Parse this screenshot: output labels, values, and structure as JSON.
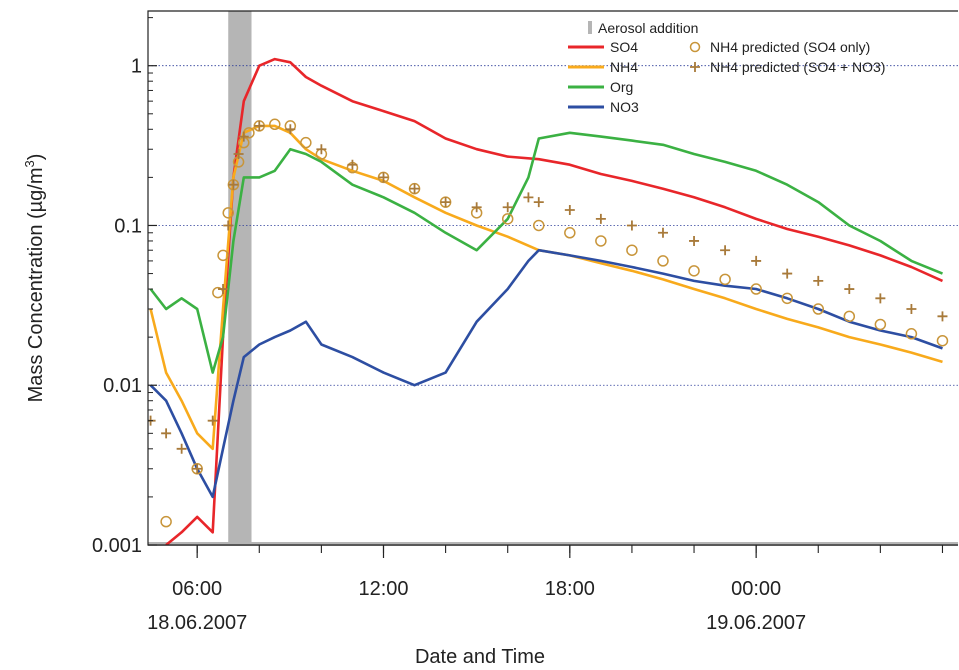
{
  "chart_data": {
    "type": "line",
    "xlabel": "Date and Time",
    "ylabel": "Mass Concentration (µg/m³)",
    "ylabel_parts": {
      "main": "Mass Concentration (µg/m",
      "sup": "3",
      "close": ")"
    },
    "yscale": "log",
    "xlim": [
      "2007-06-18 04:25",
      "2007-06-19 06:30"
    ],
    "ylim": [
      0.001,
      2.2
    ],
    "y_ticks": [
      {
        "value": 1,
        "label": "1"
      },
      {
        "value": 0.1,
        "label": "0.1"
      },
      {
        "value": 0.01,
        "label": "0.01"
      },
      {
        "value": 0.001,
        "label": "0.001"
      }
    ],
    "x_ticks": [
      {
        "time": "2007-06-18 06:00",
        "label": "06:00",
        "date_label": "18.06.2007"
      },
      {
        "time": "2007-06-18 12:00",
        "label": "12:00",
        "date_label": ""
      },
      {
        "time": "2007-06-18 18:00",
        "label": "18:00",
        "date_label": ""
      },
      {
        "time": "2007-06-19 00:00",
        "label": "00:00",
        "date_label": "19.06.2007"
      }
    ],
    "grid": "horizontal dotted at decades",
    "legend_position": "top-right",
    "aerosol_addition": {
      "name": "Aerosol addition",
      "start": "2007-06-18 07:00",
      "end": "2007-06-18 07:45",
      "color": "#b5b5b5"
    },
    "series": [
      {
        "name": "SO4",
        "style": "line",
        "color": "#e8262a",
        "x": [
          "2007-06-18 05:00",
          "2007-06-18 05:30",
          "2007-06-18 06:00",
          "2007-06-18 06:30",
          "2007-06-18 06:50",
          "2007-06-18 07:10",
          "2007-06-18 07:30",
          "2007-06-18 08:00",
          "2007-06-18 08:30",
          "2007-06-18 09:00",
          "2007-06-18 09:30",
          "2007-06-18 10:00",
          "2007-06-18 11:00",
          "2007-06-18 12:00",
          "2007-06-18 13:00",
          "2007-06-18 14:00",
          "2007-06-18 15:00",
          "2007-06-18 16:00",
          "2007-06-18 17:00",
          "2007-06-18 18:00",
          "2007-06-18 19:00",
          "2007-06-18 20:00",
          "2007-06-18 21:00",
          "2007-06-18 22:00",
          "2007-06-18 23:00",
          "2007-06-19 00:00",
          "2007-06-19 01:00",
          "2007-06-19 02:00",
          "2007-06-19 03:00",
          "2007-06-19 04:00",
          "2007-06-19 05:00",
          "2007-06-19 06:00"
        ],
        "y": [
          0.001,
          0.0012,
          0.0015,
          0.0012,
          0.02,
          0.2,
          0.6,
          1.0,
          1.1,
          1.05,
          0.85,
          0.75,
          0.6,
          0.52,
          0.45,
          0.35,
          0.3,
          0.27,
          0.26,
          0.24,
          0.21,
          0.19,
          0.17,
          0.15,
          0.13,
          0.11,
          0.095,
          0.085,
          0.075,
          0.065,
          0.055,
          0.045
        ]
      },
      {
        "name": "NH4",
        "style": "line",
        "color": "#f8aa1c",
        "x": [
          "2007-06-18 04:30",
          "2007-06-18 05:00",
          "2007-06-18 05:30",
          "2007-06-18 06:00",
          "2007-06-18 06:30",
          "2007-06-18 06:50",
          "2007-06-18 07:10",
          "2007-06-18 07:30",
          "2007-06-18 08:00",
          "2007-06-18 08:30",
          "2007-06-18 09:00",
          "2007-06-18 09:30",
          "2007-06-18 10:00",
          "2007-06-18 11:00",
          "2007-06-18 12:00",
          "2007-06-18 13:00",
          "2007-06-18 14:00",
          "2007-06-18 15:00",
          "2007-06-18 16:00",
          "2007-06-18 17:00",
          "2007-06-18 18:00",
          "2007-06-18 19:00",
          "2007-06-18 20:00",
          "2007-06-18 21:00",
          "2007-06-18 22:00",
          "2007-06-18 23:00",
          "2007-06-19 00:00",
          "2007-06-19 01:00",
          "2007-06-19 02:00",
          "2007-06-19 03:00",
          "2007-06-19 04:00",
          "2007-06-19 05:00",
          "2007-06-19 06:00"
        ],
        "y": [
          0.03,
          0.012,
          0.008,
          0.005,
          0.004,
          0.03,
          0.2,
          0.38,
          0.42,
          0.42,
          0.38,
          0.3,
          0.26,
          0.22,
          0.19,
          0.15,
          0.12,
          0.1,
          0.085,
          0.07,
          0.065,
          0.058,
          0.052,
          0.046,
          0.04,
          0.035,
          0.03,
          0.026,
          0.023,
          0.02,
          0.018,
          0.016,
          0.014
        ]
      },
      {
        "name": "Org",
        "style": "line",
        "color": "#3bb143",
        "x": [
          "2007-06-18 04:30",
          "2007-06-18 05:00",
          "2007-06-18 05:30",
          "2007-06-18 06:00",
          "2007-06-18 06:30",
          "2007-06-18 06:50",
          "2007-06-18 07:10",
          "2007-06-18 07:30",
          "2007-06-18 08:00",
          "2007-06-18 08:30",
          "2007-06-18 09:00",
          "2007-06-18 09:30",
          "2007-06-18 10:00",
          "2007-06-18 11:00",
          "2007-06-18 12:00",
          "2007-06-18 13:00",
          "2007-06-18 14:00",
          "2007-06-18 15:00",
          "2007-06-18 16:00",
          "2007-06-18 16:40",
          "2007-06-18 17:00",
          "2007-06-18 18:00",
          "2007-06-18 19:00",
          "2007-06-18 20:00",
          "2007-06-18 21:00",
          "2007-06-18 22:00",
          "2007-06-18 23:00",
          "2007-06-19 00:00",
          "2007-06-19 01:00",
          "2007-06-19 02:00",
          "2007-06-19 03:00",
          "2007-06-19 04:00",
          "2007-06-19 05:00",
          "2007-06-19 06:00"
        ],
        "y": [
          0.04,
          0.03,
          0.035,
          0.03,
          0.012,
          0.02,
          0.08,
          0.2,
          0.2,
          0.22,
          0.3,
          0.28,
          0.25,
          0.18,
          0.15,
          0.12,
          0.09,
          0.07,
          0.11,
          0.2,
          0.35,
          0.38,
          0.36,
          0.34,
          0.32,
          0.28,
          0.25,
          0.22,
          0.18,
          0.14,
          0.1,
          0.08,
          0.06,
          0.05
        ]
      },
      {
        "name": "NO3",
        "style": "line",
        "color": "#2d4ea2",
        "x": [
          "2007-06-18 04:30",
          "2007-06-18 05:00",
          "2007-06-18 05:30",
          "2007-06-18 06:00",
          "2007-06-18 06:30",
          "2007-06-18 06:50",
          "2007-06-18 07:10",
          "2007-06-18 07:30",
          "2007-06-18 08:00",
          "2007-06-18 08:30",
          "2007-06-18 09:00",
          "2007-06-18 09:30",
          "2007-06-18 10:00",
          "2007-06-18 11:00",
          "2007-06-18 12:00",
          "2007-06-18 13:00",
          "2007-06-18 14:00",
          "2007-06-18 15:00",
          "2007-06-18 16:00",
          "2007-06-18 16:40",
          "2007-06-18 17:00",
          "2007-06-18 18:00",
          "2007-06-18 19:00",
          "2007-06-18 20:00",
          "2007-06-18 21:00",
          "2007-06-18 22:00",
          "2007-06-18 23:00",
          "2007-06-19 00:00",
          "2007-06-19 01:00",
          "2007-06-19 02:00",
          "2007-06-19 03:00",
          "2007-06-19 04:00",
          "2007-06-19 05:00",
          "2007-06-19 06:00"
        ],
        "y": [
          0.01,
          0.008,
          0.005,
          0.003,
          0.002,
          0.004,
          0.008,
          0.015,
          0.018,
          0.02,
          0.022,
          0.025,
          0.018,
          0.015,
          0.012,
          0.01,
          0.012,
          0.025,
          0.04,
          0.06,
          0.07,
          0.065,
          0.06,
          0.055,
          0.05,
          0.045,
          0.042,
          0.04,
          0.035,
          0.03,
          0.025,
          0.022,
          0.02,
          0.017
        ]
      },
      {
        "name": "NH4 predicted (SO4 only)",
        "style": "circle",
        "color": "#c8953a",
        "x": [
          "2007-06-18 05:00",
          "2007-06-18 06:00",
          "2007-06-18 06:40",
          "2007-06-18 06:50",
          "2007-06-18 07:00",
          "2007-06-18 07:10",
          "2007-06-18 07:20",
          "2007-06-18 07:30",
          "2007-06-18 07:40",
          "2007-06-18 08:00",
          "2007-06-18 08:30",
          "2007-06-18 09:00",
          "2007-06-18 09:30",
          "2007-06-18 10:00",
          "2007-06-18 11:00",
          "2007-06-18 12:00",
          "2007-06-18 13:00",
          "2007-06-18 14:00",
          "2007-06-18 15:00",
          "2007-06-18 16:00",
          "2007-06-18 17:00",
          "2007-06-18 18:00",
          "2007-06-18 19:00",
          "2007-06-18 20:00",
          "2007-06-18 21:00",
          "2007-06-18 22:00",
          "2007-06-18 23:00",
          "2007-06-19 00:00",
          "2007-06-19 01:00",
          "2007-06-19 02:00",
          "2007-06-19 03:00",
          "2007-06-19 04:00",
          "2007-06-19 05:00",
          "2007-06-19 06:00"
        ],
        "y": [
          0.0014,
          0.003,
          0.038,
          0.065,
          0.12,
          0.18,
          0.25,
          0.33,
          0.38,
          0.42,
          0.43,
          0.42,
          0.33,
          0.28,
          0.23,
          0.2,
          0.17,
          0.14,
          0.12,
          0.11,
          0.1,
          0.09,
          0.08,
          0.07,
          0.06,
          0.052,
          0.046,
          0.04,
          0.035,
          0.03,
          0.027,
          0.024,
          0.021,
          0.019
        ]
      },
      {
        "name": "NH4 predicted (SO4 + NO3)",
        "style": "plus",
        "color": "#a87a3a",
        "x": [
          "2007-06-18 04:30",
          "2007-06-18 05:00",
          "2007-06-18 05:30",
          "2007-06-18 06:00",
          "2007-06-18 06:30",
          "2007-06-18 06:50",
          "2007-06-18 07:00",
          "2007-06-18 07:10",
          "2007-06-18 07:20",
          "2007-06-18 07:30",
          "2007-06-18 08:00",
          "2007-06-18 09:00",
          "2007-06-18 10:00",
          "2007-06-18 11:00",
          "2007-06-18 12:00",
          "2007-06-18 13:00",
          "2007-06-18 14:00",
          "2007-06-18 15:00",
          "2007-06-18 16:00",
          "2007-06-18 16:40",
          "2007-06-18 17:00",
          "2007-06-18 18:00",
          "2007-06-18 19:00",
          "2007-06-18 20:00",
          "2007-06-18 21:00",
          "2007-06-18 22:00",
          "2007-06-18 23:00",
          "2007-06-19 00:00",
          "2007-06-19 01:00",
          "2007-06-19 02:00",
          "2007-06-19 03:00",
          "2007-06-19 04:00",
          "2007-06-19 05:00",
          "2007-06-19 06:00"
        ],
        "y": [
          0.006,
          0.005,
          0.004,
          0.003,
          0.006,
          0.04,
          0.1,
          0.18,
          0.28,
          0.36,
          0.42,
          0.4,
          0.3,
          0.24,
          0.2,
          0.17,
          0.14,
          0.13,
          0.13,
          0.15,
          0.14,
          0.125,
          0.11,
          0.1,
          0.09,
          0.08,
          0.07,
          0.06,
          0.05,
          0.045,
          0.04,
          0.035,
          0.03,
          0.027
        ]
      }
    ]
  }
}
